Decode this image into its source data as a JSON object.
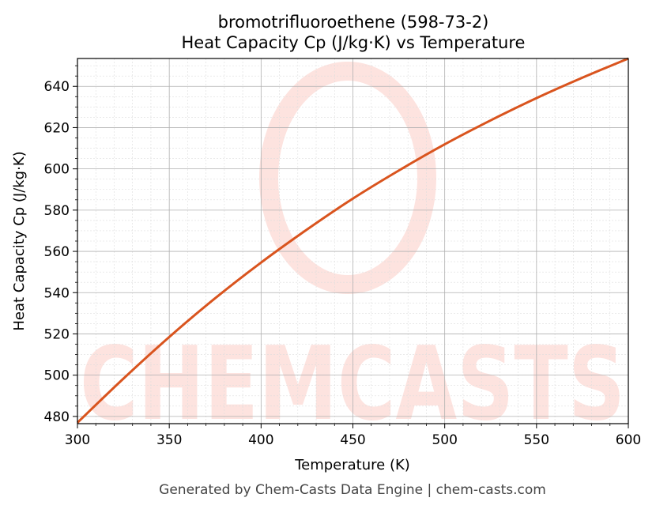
{
  "title": {
    "line1": "bromotrifluoroethene (598-73-2)",
    "line2": "Heat Capacity Cp (J/kg·K) vs Temperature"
  },
  "footer": "Generated by Chem-Casts Data Engine | chem-casts.com",
  "watermark": "CHEMCASTS",
  "colors": {
    "line": "#d9541e",
    "watermark": "#fde3df",
    "grid_major": "#b0b0b0",
    "grid_minor": "#dddddd",
    "text": "#000000",
    "footer": "#444444"
  },
  "chart_data": {
    "type": "line",
    "title": "bromotrifluoroethene (598-73-2)\nHeat Capacity Cp (J/kg·K) vs Temperature",
    "xlabel": "Temperature (K)",
    "ylabel": "Heat Capacity Cp (J/kg·K)",
    "xlim": [
      300,
      600
    ],
    "ylim": [
      476.5,
      653.5
    ],
    "xticks": [
      300,
      350,
      400,
      450,
      500,
      550,
      600
    ],
    "yticks": [
      480,
      500,
      520,
      540,
      560,
      580,
      600,
      620,
      640
    ],
    "grid": true,
    "minor_grid": true,
    "series": [
      {
        "x": [
          300,
          325,
          350,
          375,
          400,
          425,
          450,
          475,
          500,
          525,
          550,
          575,
          600
        ],
        "values": [
          477,
          498.3,
          518.5,
          537.3,
          554.6,
          570.6,
          585.6,
          599.2,
          611.9,
          623.5,
          634.3,
          644.2,
          653.5
        ]
      }
    ]
  }
}
